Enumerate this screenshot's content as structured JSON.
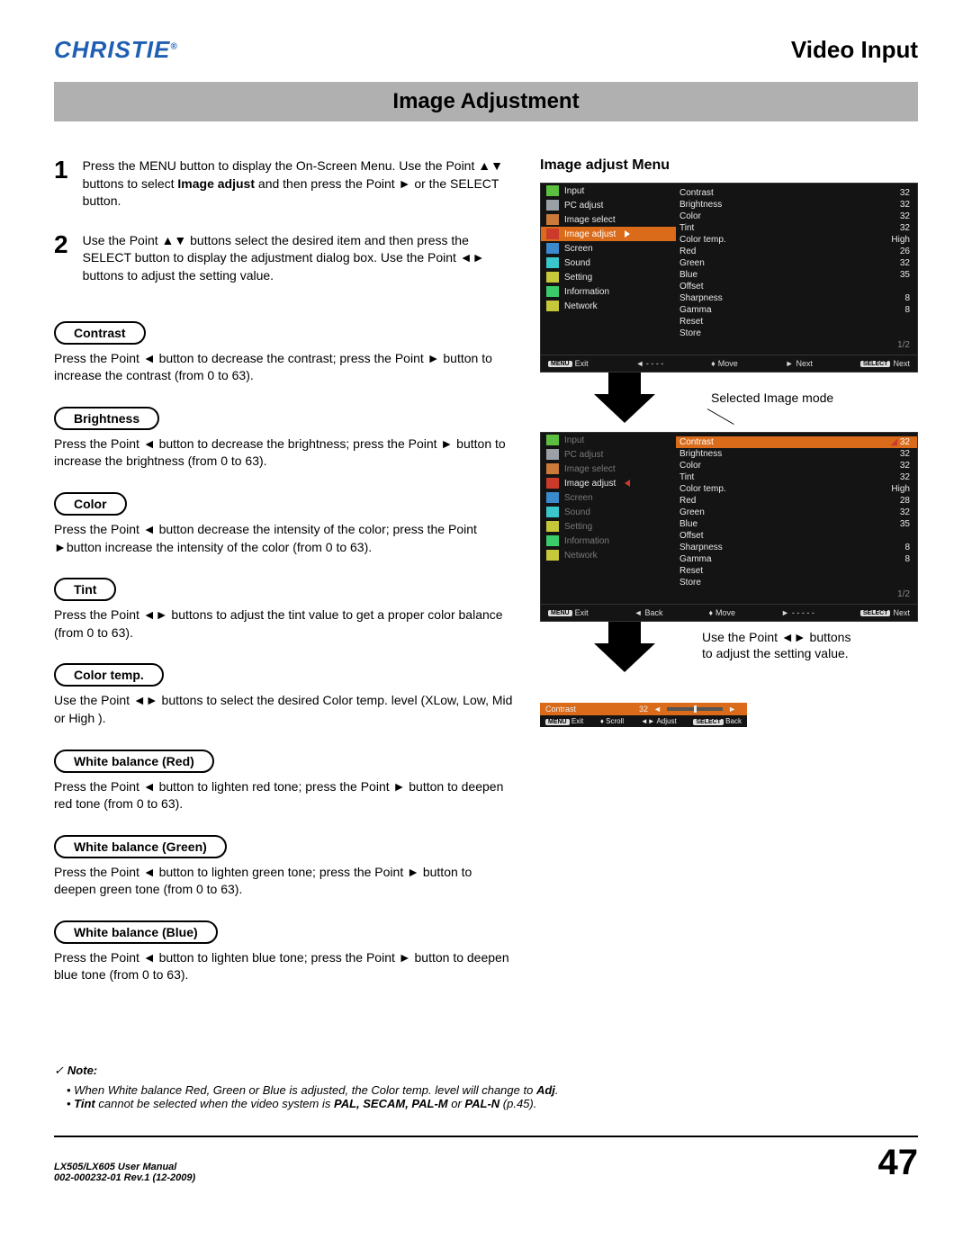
{
  "header": {
    "logo": "CHRISTIE",
    "section": "Video Input",
    "banner": "Image Adjustment"
  },
  "steps": [
    {
      "num": "1",
      "text_a": "Press the MENU button to display the On-Screen Menu. Use the Point ▲▼ buttons to select ",
      "bold": "Image adjust",
      "text_b": " and then press the Point ► or the SELECT button."
    },
    {
      "num": "2",
      "text_a": "Use the Point ▲▼ buttons select the desired item and then press the SELECT button to display the adjustment dialog box. Use the Point ◄► buttons to adjust the setting value.",
      "bold": "",
      "text_b": ""
    }
  ],
  "params": [
    {
      "label": "Contrast",
      "desc": "Press the Point ◄ button to decrease the contrast; press the Point ► button to increase the contrast (from 0 to 63)."
    },
    {
      "label": "Brightness",
      "desc": "Press the Point ◄ button to decrease the brightness; press  the Point ► button to increase the brightness (from 0 to 63)."
    },
    {
      "label": "Color",
      "desc": "Press the Point ◄ button decrease the intensity of the color; press the Point ►button increase the intensity of the color (from 0 to 63)."
    },
    {
      "label": "Tint",
      "desc": "Press the Point ◄► buttons to adjust the tint value to get a proper color balance (from 0 to 63)."
    },
    {
      "label": "Color temp.",
      "desc": "Use the Point ◄► buttons to select the desired Color temp. level (XLow, Low, Mid or High )."
    },
    {
      "label": "White balance (Red)",
      "desc": "Press the Point ◄ button to lighten red tone; press the Point ► button to deepen red tone (from 0 to 63)."
    },
    {
      "label": "White balance (Green)",
      "desc": "Press the Point ◄ button to lighten green tone; press the Point ► button to deepen green tone (from 0 to 63)."
    },
    {
      "label": "White balance (Blue)",
      "desc": "Press the Point ◄ button to lighten blue tone; press the Point ► button to deepen blue tone (from 0 to 63)."
    }
  ],
  "right": {
    "title": "Image adjust Menu",
    "callout1": "Selected Image mode",
    "callout2": "Use the Point ◄► buttons to adjust the setting value."
  },
  "osd": {
    "left_items": [
      {
        "label": "Input",
        "color": "#5bbf3f"
      },
      {
        "label": "PC adjust",
        "color": "#9aa0a6"
      },
      {
        "label": "Image select",
        "color": "#cc7a3a"
      },
      {
        "label": "Image adjust",
        "color": "#cc3a2c",
        "hl": true
      },
      {
        "label": "Screen",
        "color": "#3a8acc"
      },
      {
        "label": "Sound",
        "color": "#3ac7cc"
      },
      {
        "label": "Setting",
        "color": "#c7c73a"
      },
      {
        "label": "Information",
        "color": "#3acc6a"
      },
      {
        "label": "Network",
        "color": "#c7c73a"
      }
    ],
    "right_rows": [
      {
        "k": "Contrast",
        "v": "32"
      },
      {
        "k": "Brightness",
        "v": "32"
      },
      {
        "k": "Color",
        "v": "32"
      },
      {
        "k": "Tint",
        "v": "32"
      },
      {
        "k": "Color temp.",
        "v": "High"
      },
      {
        "k": "Red",
        "v": "26"
      },
      {
        "k": "Green",
        "v": "32"
      },
      {
        "k": "Blue",
        "v": "35"
      },
      {
        "k": "Offset",
        "v": ""
      },
      {
        "k": "Sharpness",
        "v": "8"
      },
      {
        "k": "Gamma",
        "v": "8"
      },
      {
        "k": "Reset",
        "v": ""
      },
      {
        "k": "Store",
        "v": ""
      }
    ],
    "page": "1/2",
    "foot1": {
      "exit": "Exit",
      "back": "◄ - - - -",
      "move": "Move",
      "next": "Next",
      "sel": "Next"
    },
    "right_rows2": [
      {
        "k": "Contrast",
        "v": "32",
        "hl": true
      },
      {
        "k": "Brightness",
        "v": "32"
      },
      {
        "k": "Color",
        "v": "32"
      },
      {
        "k": "Tint",
        "v": "32"
      },
      {
        "k": "Color temp.",
        "v": "High"
      },
      {
        "k": "Red",
        "v": "28"
      },
      {
        "k": "Green",
        "v": "32"
      },
      {
        "k": "Blue",
        "v": "35"
      },
      {
        "k": "Offset",
        "v": ""
      },
      {
        "k": "Sharpness",
        "v": "8"
      },
      {
        "k": "Gamma",
        "v": "8"
      },
      {
        "k": "Reset",
        "v": ""
      },
      {
        "k": "Store",
        "v": ""
      }
    ],
    "foot2": {
      "exit": "Exit",
      "back": "Back",
      "move": "Move",
      "next": "- - - - -",
      "sel": "Next"
    },
    "mini": {
      "label": "Contrast",
      "val": "32",
      "exit": "Exit",
      "scroll": "Scroll",
      "adjust": "Adjust",
      "back": "Back"
    }
  },
  "note": {
    "heading": "Note:",
    "items": [
      {
        "pre": "When White balance Red, Green or Blue is adjusted, the Color temp. level will change to ",
        "b": "Adj",
        "post": "."
      },
      {
        "b": "Tint",
        "pre2": " cannot be selected when the video system is ",
        "b2": "PAL, SECAM, PAL-M",
        "pre3": " or ",
        "b3": "PAL-N",
        "post": " (p.45)."
      }
    ]
  },
  "footer": {
    "manual": "LX505/LX605 User Manual",
    "rev": "002-000232-01 Rev.1 (12-2009)",
    "page": "47"
  }
}
